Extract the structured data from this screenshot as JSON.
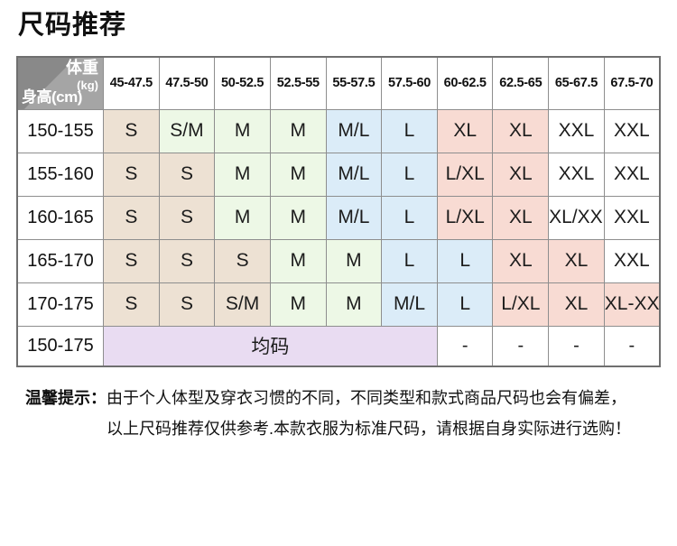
{
  "page": {
    "title": "尺码推荐"
  },
  "colors": {
    "tan": "#ede1d3",
    "green": "#edf8e6",
    "blue": "#dbecf8",
    "pink": "#f8dbd3",
    "purple": "#e9dcf2",
    "white": "#ffffff",
    "corner_dark_gray": "#898989",
    "corner_light_gray": "#a5a5a5",
    "border_gray": "#8e8e8e"
  },
  "table": {
    "corner": {
      "weight_label": "体重",
      "weight_unit": "(kg)",
      "height_label": "身高(cm)"
    },
    "weight_columns": [
      "45-47.5",
      "47.5-50",
      "50-52.5",
      "52.5-55",
      "55-57.5",
      "57.5-60",
      "60-62.5",
      "62.5-65",
      "65-67.5",
      "67.5-70"
    ],
    "rows": [
      {
        "height": "150-155",
        "cells": [
          {
            "v": "S",
            "c": "tan"
          },
          {
            "v": "S/M",
            "c": "green"
          },
          {
            "v": "M",
            "c": "green"
          },
          {
            "v": "M",
            "c": "green"
          },
          {
            "v": "M/L",
            "c": "blue"
          },
          {
            "v": "L",
            "c": "blue"
          },
          {
            "v": "XL",
            "c": "pink"
          },
          {
            "v": "XL",
            "c": "pink"
          },
          {
            "v": "XXL",
            "c": "white"
          },
          {
            "v": "XXL",
            "c": "white"
          }
        ]
      },
      {
        "height": "155-160",
        "cells": [
          {
            "v": "S",
            "c": "tan"
          },
          {
            "v": "S",
            "c": "tan"
          },
          {
            "v": "M",
            "c": "green"
          },
          {
            "v": "M",
            "c": "green"
          },
          {
            "v": "M/L",
            "c": "blue"
          },
          {
            "v": "L",
            "c": "blue"
          },
          {
            "v": "L/XL",
            "c": "pink"
          },
          {
            "v": "XL",
            "c": "pink"
          },
          {
            "v": "XXL",
            "c": "white"
          },
          {
            "v": "XXL",
            "c": "white"
          }
        ]
      },
      {
        "height": "160-165",
        "cells": [
          {
            "v": "S",
            "c": "tan"
          },
          {
            "v": "S",
            "c": "tan"
          },
          {
            "v": "M",
            "c": "green"
          },
          {
            "v": "M",
            "c": "green"
          },
          {
            "v": "M/L",
            "c": "blue"
          },
          {
            "v": "L",
            "c": "blue"
          },
          {
            "v": "L/XL",
            "c": "pink"
          },
          {
            "v": "XL",
            "c": "pink"
          },
          {
            "v": "XL/XXL",
            "c": "white"
          },
          {
            "v": "XXL",
            "c": "white"
          }
        ]
      },
      {
        "height": "165-170",
        "cells": [
          {
            "v": "S",
            "c": "tan"
          },
          {
            "v": "S",
            "c": "tan"
          },
          {
            "v": "S",
            "c": "tan"
          },
          {
            "v": "M",
            "c": "green"
          },
          {
            "v": "M",
            "c": "green"
          },
          {
            "v": "L",
            "c": "blue"
          },
          {
            "v": "L",
            "c": "blue"
          },
          {
            "v": "XL",
            "c": "pink"
          },
          {
            "v": "XL",
            "c": "pink"
          },
          {
            "v": "XXL",
            "c": "white"
          }
        ]
      },
      {
        "height": "170-175",
        "cells": [
          {
            "v": "S",
            "c": "tan"
          },
          {
            "v": "S",
            "c": "tan"
          },
          {
            "v": "S/M",
            "c": "tan"
          },
          {
            "v": "M",
            "c": "green"
          },
          {
            "v": "M",
            "c": "green"
          },
          {
            "v": "M/L",
            "c": "blue"
          },
          {
            "v": "L",
            "c": "blue"
          },
          {
            "v": "L/XL",
            "c": "pink"
          },
          {
            "v": "XL",
            "c": "pink"
          },
          {
            "v": "XL-XXL",
            "c": "pink"
          }
        ]
      }
    ],
    "one_size_row": {
      "height": "150-175",
      "label": "均码",
      "label_colspan": 6,
      "label_color": "purple",
      "dashes": [
        "-",
        "-",
        "-",
        "-"
      ]
    }
  },
  "note": {
    "label": "温馨提示：",
    "line1": "由于个人体型及穿衣习惯的不同，不同类型和款式商品尺码也会有偏差，",
    "line2": "以上尺码推荐仅供参考.本款衣服为标准尺码，请根据自身实际进行选购！"
  }
}
